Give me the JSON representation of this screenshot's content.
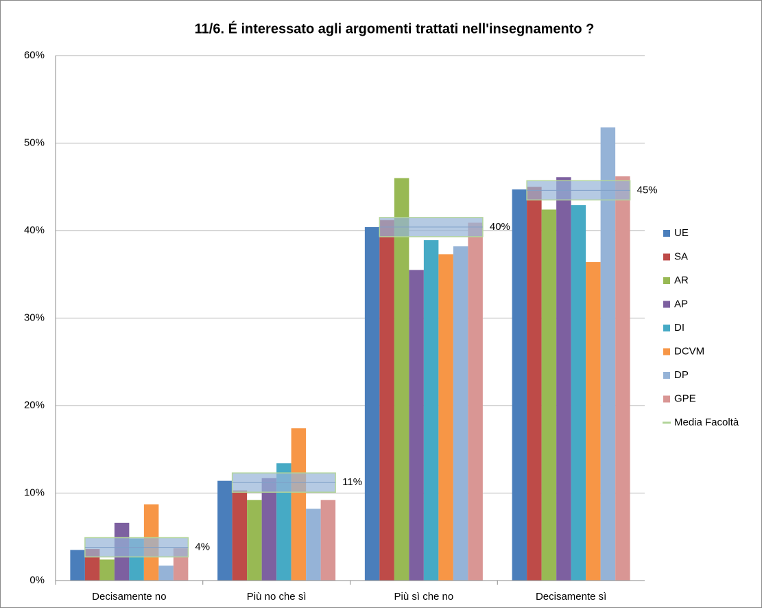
{
  "chart_data": {
    "type": "bar",
    "title": "11/6. É interessato agli argomenti trattati nell'insegnamento ?",
    "categories": [
      "Decisamente no",
      "Più no che sì",
      "Più sì che no",
      "Decisamente sì"
    ],
    "series": [
      {
        "name": "UE",
        "color": "#4a7ebb",
        "values": [
          3.5,
          11.4,
          40.4,
          44.7
        ]
      },
      {
        "name": "SA",
        "color": "#be4b48",
        "values": [
          3.6,
          10.3,
          41.2,
          45.0
        ]
      },
      {
        "name": "AR",
        "color": "#98b954",
        "values": [
          2.4,
          9.2,
          46.0,
          42.4
        ]
      },
      {
        "name": "AP",
        "color": "#7d60a0",
        "values": [
          6.6,
          11.7,
          35.5,
          46.1
        ]
      },
      {
        "name": "DI",
        "color": "#46aac5",
        "values": [
          4.8,
          13.4,
          38.9,
          42.9
        ]
      },
      {
        "name": "DCVM",
        "color": "#f79646",
        "values": [
          8.7,
          17.4,
          37.3,
          36.4
        ]
      },
      {
        "name": "DP",
        "color": "#95b3d7",
        "values": [
          1.7,
          8.2,
          38.2,
          51.8
        ]
      },
      {
        "name": "GPE",
        "color": "#d99694",
        "values": [
          3.7,
          9.2,
          40.9,
          46.2
        ]
      },
      {
        "name": "Media Facoltà",
        "type": "line",
        "color": "#b3d59b",
        "values": [
          3.8,
          11.2,
          40.4,
          44.6
        ],
        "value_labels": [
          "4%",
          "11%",
          "40%",
          "45%"
        ]
      }
    ],
    "ylim": [
      0,
      60
    ],
    "yticks": [
      {
        "value": 0,
        "label": "0%"
      },
      {
        "value": 10,
        "label": "10%"
      },
      {
        "value": 20,
        "label": "20%"
      },
      {
        "value": 30,
        "label": "30%"
      },
      {
        "value": 40,
        "label": "40%"
      },
      {
        "value": 50,
        "label": "50%"
      },
      {
        "value": 60,
        "label": "60%"
      }
    ],
    "grid": true,
    "legend": "right"
  }
}
